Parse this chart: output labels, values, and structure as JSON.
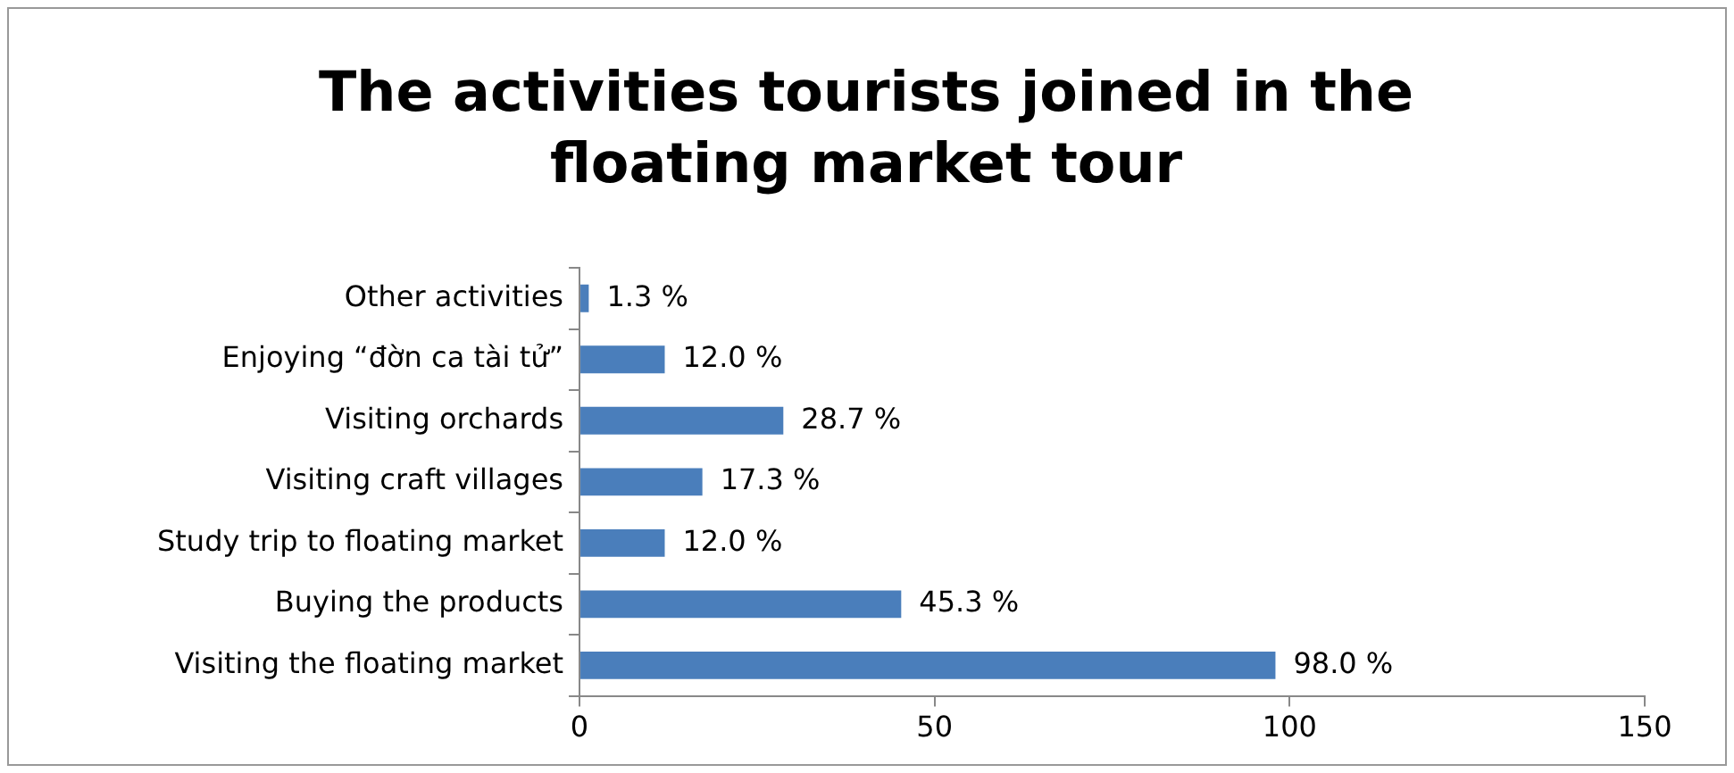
{
  "chart_data": {
    "type": "bar",
    "orientation": "horizontal",
    "title": "The activities tourists joined in the floating market tour",
    "categories": [
      "Other activities",
      "Enjoying “đờn ca tài tử”",
      "Visiting orchards",
      "Visiting craft villages",
      "Study trip to floating market",
      "Buying the products",
      "Visiting the floating market"
    ],
    "values": [
      1.3,
      12.0,
      28.7,
      17.3,
      12.0,
      45.3,
      98.0
    ],
    "value_labels": [
      "1.3 %",
      "12.0 %",
      "28.7 %",
      "17.3 %",
      "12.0 %",
      "45.3 %",
      "98.0 %"
    ],
    "color": "#4a7ebb",
    "xlim": [
      0,
      150
    ],
    "xticks": [
      0,
      50,
      100,
      150
    ],
    "grid": false,
    "legend": false
  }
}
